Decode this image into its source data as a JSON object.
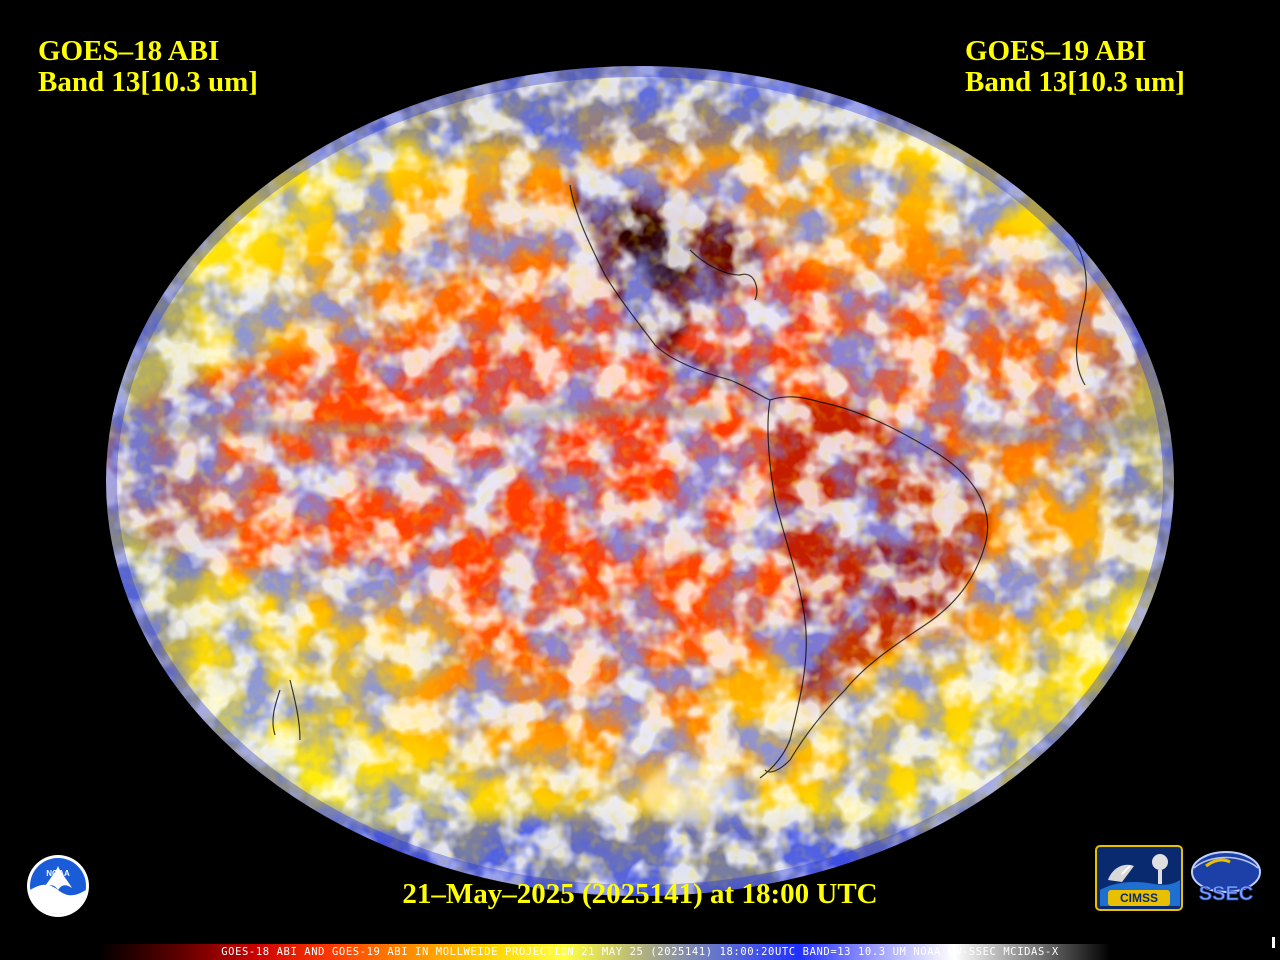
{
  "left_label": {
    "satellite": "GOES–18 ABI",
    "band": "Band 13[10.3 um]"
  },
  "right_label": {
    "satellite": "GOES–19 ABI",
    "band": "Band 13[10.3 um]"
  },
  "timestamp": "21–May–2025 (2025141) at 18:00 UTC",
  "footer_caption": "GOES-18 ABI AND GOES-19 ABI IN MOLLWEIDE PROJECTION 21 MAY 25 (2025141) 18:00:20UTC BAND=13 10.3 UM NOAA UW-SSEC MCIDAS-X",
  "logos": {
    "noaa": "NOAA",
    "cimss": "CIMSS",
    "ssec": "SSEC"
  },
  "colors": {
    "background": "#000000",
    "label_text": "#ffff00",
    "ocean_warm": "#ff5a00",
    "hot_land": "#3a0000",
    "cloud_blue": "#3344ee",
    "cloud_white": "#ffffff",
    "mid_yellow": "#ffe600"
  },
  "colorbar_stops": [
    "#000000",
    "#5a0000",
    "#c80000",
    "#ff3a00",
    "#ff8c00",
    "#ffd200",
    "#ffff40",
    "#b0b080",
    "#6070d0",
    "#2030ff",
    "#a0a0ff",
    "#ffffff",
    "#808080",
    "#000000"
  ]
}
